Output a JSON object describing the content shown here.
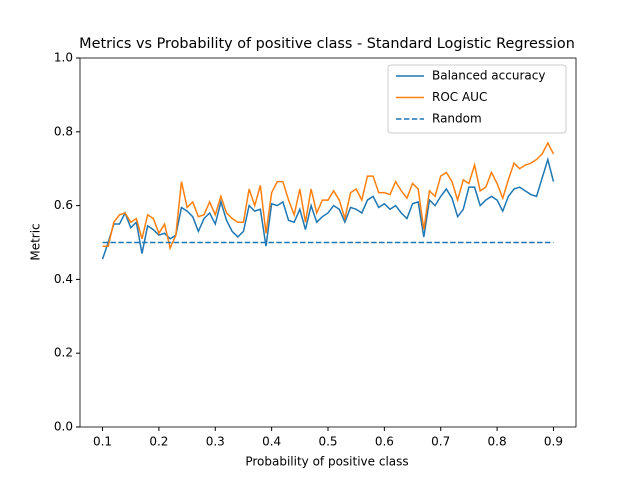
{
  "chart_data": {
    "type": "line",
    "title": "Metrics vs Probability of positive class - Standard Logistic Regression",
    "xlabel": "Probability of positive class",
    "ylabel": "Metric",
    "x": [
      0.1,
      0.11,
      0.12,
      0.13,
      0.14,
      0.15,
      0.16,
      0.17,
      0.18,
      0.19,
      0.2,
      0.21,
      0.22,
      0.23,
      0.24,
      0.25,
      0.26,
      0.27,
      0.28,
      0.29,
      0.3,
      0.31,
      0.32,
      0.33,
      0.34,
      0.35,
      0.36,
      0.37,
      0.38,
      0.39,
      0.4,
      0.41,
      0.42,
      0.43,
      0.44,
      0.45,
      0.46,
      0.47,
      0.48,
      0.49,
      0.5,
      0.51,
      0.52,
      0.53,
      0.54,
      0.55,
      0.56,
      0.57,
      0.58,
      0.59,
      0.6,
      0.61,
      0.62,
      0.63,
      0.64,
      0.65,
      0.66,
      0.67,
      0.68,
      0.69,
      0.7,
      0.71,
      0.72,
      0.73,
      0.74,
      0.75,
      0.76,
      0.77,
      0.78,
      0.79,
      0.8,
      0.81,
      0.82,
      0.83,
      0.84,
      0.85,
      0.86,
      0.87,
      0.88,
      0.89,
      0.9
    ],
    "series": [
      {
        "name": "Balanced accuracy",
        "color": "#1f77b4",
        "dashed": false,
        "values": [
          0.455,
          0.5,
          0.55,
          0.55,
          0.58,
          0.54,
          0.555,
          0.47,
          0.545,
          0.535,
          0.52,
          0.525,
          0.51,
          0.52,
          0.595,
          0.585,
          0.57,
          0.53,
          0.565,
          0.58,
          0.55,
          0.61,
          0.56,
          0.53,
          0.515,
          0.53,
          0.6,
          0.585,
          0.59,
          0.49,
          0.605,
          0.6,
          0.61,
          0.56,
          0.555,
          0.59,
          0.535,
          0.6,
          0.555,
          0.57,
          0.58,
          0.6,
          0.59,
          0.555,
          0.595,
          0.59,
          0.58,
          0.615,
          0.625,
          0.595,
          0.605,
          0.59,
          0.6,
          0.58,
          0.565,
          0.605,
          0.61,
          0.515,
          0.615,
          0.6,
          0.625,
          0.645,
          0.62,
          0.57,
          0.59,
          0.65,
          0.65,
          0.6,
          0.615,
          0.625,
          0.615,
          0.585,
          0.625,
          0.645,
          0.65,
          0.64,
          0.63,
          0.625,
          0.675,
          0.725,
          0.665
        ]
      },
      {
        "name": "ROC AUC",
        "color": "#ff7f0e",
        "dashed": false,
        "values": [
          0.49,
          0.49,
          0.555,
          0.575,
          0.58,
          0.555,
          0.565,
          0.51,
          0.575,
          0.565,
          0.525,
          0.55,
          0.485,
          0.52,
          0.665,
          0.595,
          0.61,
          0.57,
          0.575,
          0.61,
          0.575,
          0.625,
          0.58,
          0.565,
          0.555,
          0.555,
          0.645,
          0.6,
          0.655,
          0.525,
          0.635,
          0.665,
          0.665,
          0.615,
          0.575,
          0.645,
          0.555,
          0.645,
          0.58,
          0.615,
          0.615,
          0.64,
          0.615,
          0.565,
          0.635,
          0.645,
          0.615,
          0.68,
          0.68,
          0.635,
          0.635,
          0.63,
          0.665,
          0.64,
          0.62,
          0.66,
          0.645,
          0.535,
          0.64,
          0.625,
          0.68,
          0.69,
          0.665,
          0.615,
          0.67,
          0.66,
          0.71,
          0.64,
          0.65,
          0.69,
          0.66,
          0.62,
          0.67,
          0.715,
          0.7,
          0.71,
          0.715,
          0.725,
          0.74,
          0.77,
          0.74
        ]
      },
      {
        "name": "Random",
        "color": "#1f77b4",
        "dashed": true,
        "x": [
          0.1,
          0.9
        ],
        "values": [
          0.5,
          0.5
        ]
      }
    ],
    "xlim": [
      0.06,
      0.94
    ],
    "ylim": [
      0,
      1
    ],
    "xticks": [
      0.1,
      0.2,
      0.3,
      0.4,
      0.5,
      0.6,
      0.7,
      0.8,
      0.9
    ],
    "yticks": [
      {
        "value": 0,
        "label": "0.0"
      },
      0.2,
      0.4,
      0.6,
      0.8,
      {
        "value": 1,
        "label": "1.0"
      }
    ],
    "legend": "upper right",
    "grid": false
  }
}
